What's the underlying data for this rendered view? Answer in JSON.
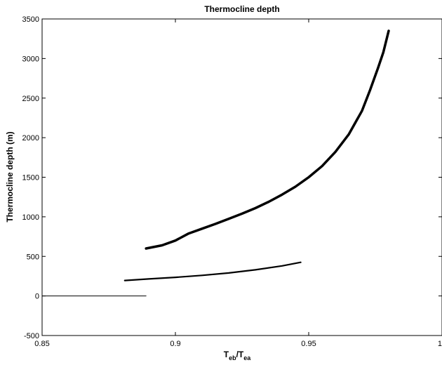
{
  "chart_data": {
    "type": "line",
    "title": "Thermocline depth",
    "xlabel": {
      "base": "T",
      "sub1": "eb",
      "sep": "/T",
      "sub2": "ea"
    },
    "ylabel": "Thermocline depth (m)",
    "xlim": [
      0.85,
      1.0
    ],
    "ylim": [
      -500,
      3500
    ],
    "xticks": [
      0.85,
      0.9,
      0.95,
      1.0
    ],
    "xtick_labels": [
      "0.85",
      "0.9",
      "0.95",
      "1"
    ],
    "yticks": [
      -500,
      0,
      500,
      1000,
      1500,
      2000,
      2500,
      3000,
      3500
    ],
    "ytick_labels": [
      "-500",
      "0",
      "500",
      "1000",
      "1500",
      "2000",
      "2500",
      "3000",
      "3500"
    ],
    "grid": false,
    "series": [
      {
        "style": "thick",
        "color": "#000000",
        "x": [
          0.889,
          0.895,
          0.9,
          0.905,
          0.91,
          0.915,
          0.92,
          0.925,
          0.93,
          0.935,
          0.94,
          0.945,
          0.95,
          0.955,
          0.96,
          0.965,
          0.97,
          0.973,
          0.976,
          0.978,
          0.98
        ],
        "y": [
          600,
          640,
          700,
          790,
          850,
          910,
          975,
          1040,
          1110,
          1190,
          1280,
          1380,
          1500,
          1640,
          1820,
          2040,
          2340,
          2600,
          2880,
          3080,
          3350
        ]
      },
      {
        "style": "medium",
        "color": "#000000",
        "x": [
          0.881,
          0.89,
          0.9,
          0.91,
          0.92,
          0.93,
          0.94,
          0.947
        ],
        "y": [
          195,
          215,
          235,
          260,
          290,
          330,
          380,
          425
        ]
      },
      {
        "style": "thin",
        "color": "#000000",
        "x": [
          0.85,
          0.889
        ],
        "y": [
          0,
          0
        ]
      }
    ]
  }
}
